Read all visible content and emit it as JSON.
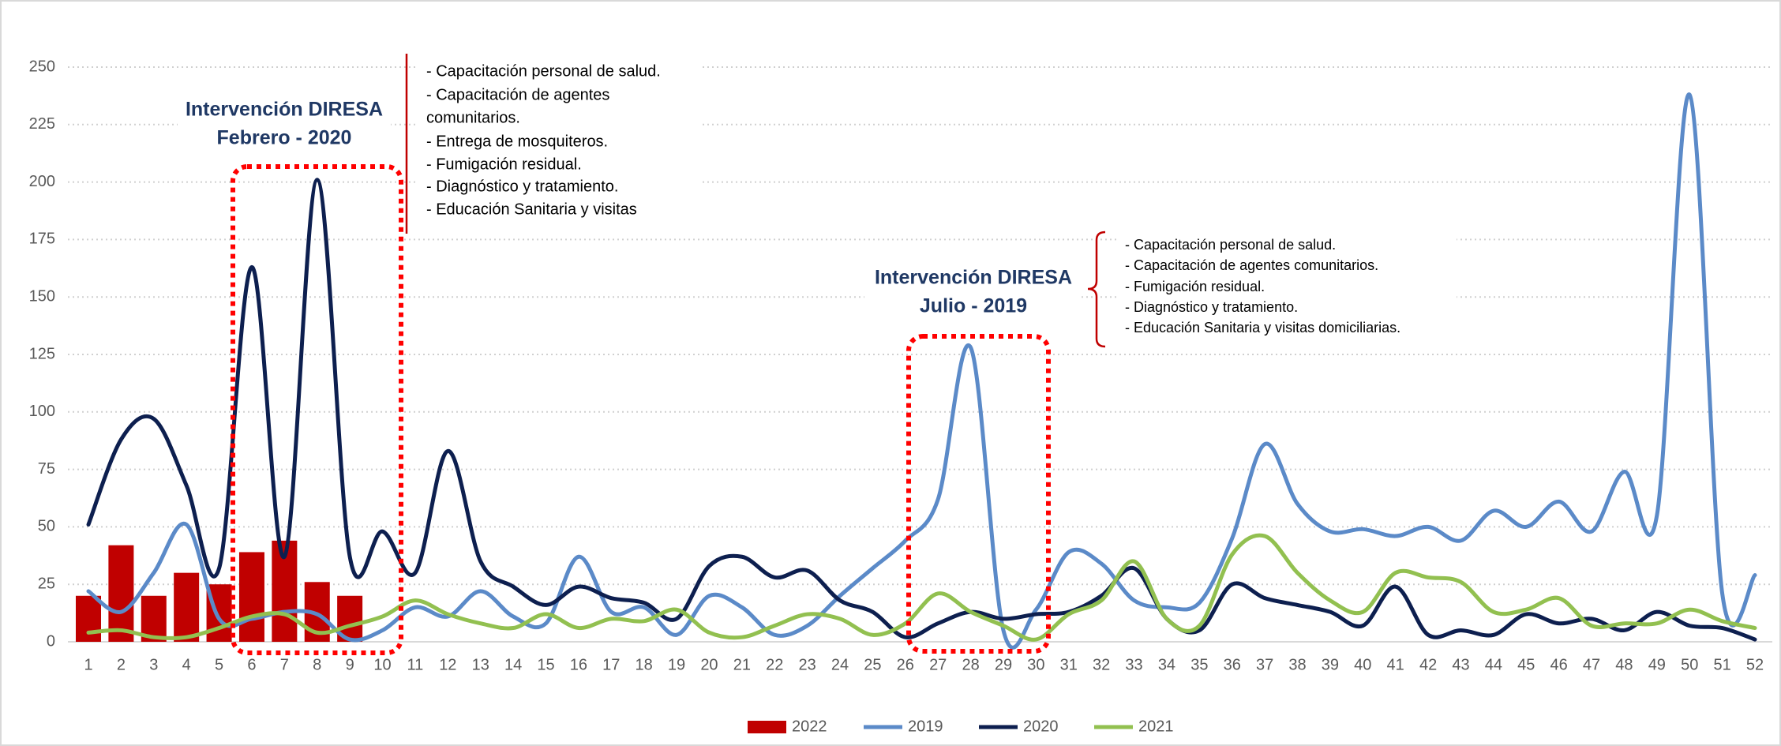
{
  "chart_data": {
    "type": "line",
    "categories": [
      "1",
      "2",
      "3",
      "4",
      "5",
      "6",
      "7",
      "8",
      "9",
      "10",
      "11",
      "12",
      "13",
      "14",
      "15",
      "16",
      "17",
      "18",
      "19",
      "20",
      "21",
      "22",
      "23",
      "24",
      "25",
      "26",
      "27",
      "28",
      "29",
      "30",
      "31",
      "32",
      "33",
      "34",
      "35",
      "36",
      "37",
      "38",
      "39",
      "40",
      "41",
      "42",
      "43",
      "44",
      "45",
      "46",
      "47",
      "48",
      "49",
      "50",
      "51",
      "52"
    ],
    "series": [
      {
        "name": "2022",
        "type": "bar",
        "color": "#c00000",
        "values": [
          20,
          42,
          20,
          30,
          25,
          39,
          44,
          26,
          20,
          null,
          null,
          null,
          null,
          null,
          null,
          null,
          null,
          null,
          null,
          null,
          null,
          null,
          null,
          null,
          null,
          null,
          null,
          null,
          null,
          null,
          null,
          null,
          null,
          null,
          null,
          null,
          null,
          null,
          null,
          null,
          null,
          null,
          null,
          null,
          null,
          null,
          null,
          null,
          null,
          null,
          null,
          null
        ]
      },
      {
        "name": "2019",
        "type": "line",
        "color": "#5b8ac8",
        "values": [
          22,
          13,
          30,
          51,
          10,
          10,
          13,
          12,
          1,
          5,
          15,
          11,
          22,
          11,
          8,
          37,
          13,
          15,
          3,
          20,
          15,
          3,
          7,
          20,
          32,
          44,
          62,
          128,
          5,
          14,
          39,
          34,
          18,
          15,
          17,
          45,
          86,
          60,
          48,
          49,
          46,
          50,
          44,
          57,
          50,
          61,
          48,
          74,
          55,
          238,
          21,
          29
        ]
      },
      {
        "name": "2020",
        "type": "line",
        "color": "#0d1f4f",
        "values": [
          51,
          88,
          97,
          68,
          32,
          163,
          37,
          201,
          37,
          48,
          30,
          83,
          35,
          24,
          16,
          24,
          19,
          17,
          10,
          33,
          37,
          28,
          31,
          18,
          13,
          2,
          8,
          13,
          10,
          12,
          13,
          20,
          32,
          10,
          5,
          25,
          19,
          16,
          13,
          7,
          24,
          3,
          5,
          3,
          12,
          8,
          10,
          5,
          13,
          7,
          6,
          1
        ]
      },
      {
        "name": "2021",
        "type": "line",
        "color": "#92c050",
        "values": [
          4,
          5,
          2,
          2,
          6,
          11,
          12,
          4,
          7,
          11,
          18,
          12,
          8,
          6,
          12,
          6,
          10,
          9,
          14,
          4,
          2,
          7,
          12,
          10,
          3,
          8,
          21,
          13,
          7,
          1,
          12,
          18,
          35,
          10,
          7,
          38,
          46,
          30,
          18,
          13,
          30,
          28,
          26,
          13,
          14,
          19,
          7,
          8,
          8,
          14,
          9,
          6
        ]
      }
    ],
    "ylim": [
      0,
      250
    ],
    "yticks": [
      0,
      25,
      50,
      75,
      100,
      125,
      150,
      175,
      200,
      225,
      250
    ],
    "grid": true,
    "legend": "bottom",
    "annotations": [
      {
        "title": [
          "Intervención DIRESA",
          "Febrero - 2020"
        ],
        "lines": [
          "- Capacitación personal de salud.",
          "- Capacitación de agentes",
          "comunitarios.",
          "- Entrega de mosquiteros.",
          "- Fumigación residual.",
          "- Diagnóstico y tratamiento.",
          "- Educación Sanitaria y visitas"
        ]
      },
      {
        "title": [
          "Intervención DIRESA",
          "Julio - 2019"
        ],
        "lines": [
          "- Capacitación personal de salud.",
          "- Capacitación de agentes comunitarios.",
          "- Fumigación residual.",
          "- Diagnóstico y tratamiento.",
          "- Educación Sanitaria y visitas domiciliarias."
        ]
      }
    ]
  }
}
